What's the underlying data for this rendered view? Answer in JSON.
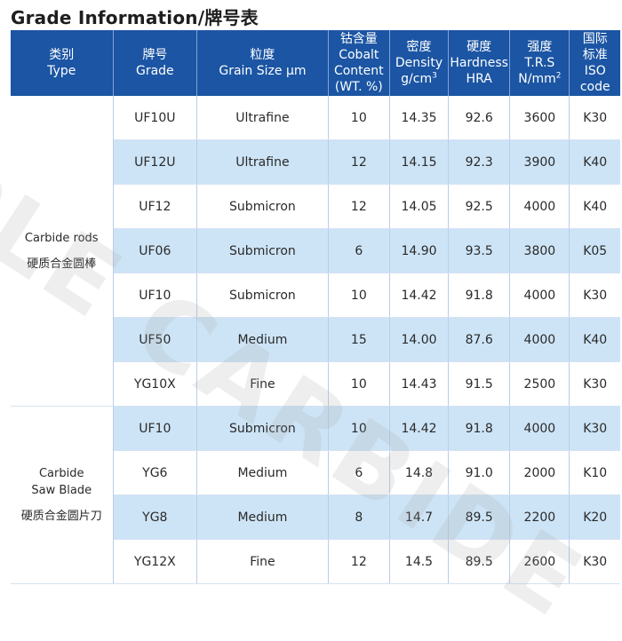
{
  "title": "Grade Information/牌号表",
  "watermark": "PLE CARBIDE",
  "header": {
    "type": [
      "类别",
      "Type"
    ],
    "grade": [
      "牌号",
      "Grade"
    ],
    "grain": [
      "粒度",
      "Grain Size μm"
    ],
    "cobalt": [
      "钴含量",
      "Cobalt",
      "Content",
      "(WT. %)"
    ],
    "density": [
      "密度",
      "Density",
      "g/cm",
      "3"
    ],
    "hardness": [
      "硬度",
      "Hardness",
      "HRA"
    ],
    "strength": [
      "强度",
      "T.R.S",
      "N/mm",
      "2"
    ],
    "iso": [
      "国际",
      "标准",
      "ISO",
      "code"
    ]
  },
  "groups": [
    {
      "type_en": "Carbide rods",
      "type_cn": "硬质合金圆棒",
      "rows": [
        {
          "grade": "UF10U",
          "grain": "Ultrafine",
          "cobalt": "10",
          "density": "14.35",
          "hardness": "92.6",
          "trs": "3600",
          "iso": "K30"
        },
        {
          "grade": "UF12U",
          "grain": "Ultrafine",
          "cobalt": "12",
          "density": "14.15",
          "hardness": "92.3",
          "trs": "3900",
          "iso": "K40"
        },
        {
          "grade": "UF12",
          "grain": "Submicron",
          "cobalt": "12",
          "density": "14.05",
          "hardness": "92.5",
          "trs": "4000",
          "iso": "K40"
        },
        {
          "grade": "UF06",
          "grain": "Submicron",
          "cobalt": "6",
          "density": "14.90",
          "hardness": "93.5",
          "trs": "3800",
          "iso": "K05"
        },
        {
          "grade": "UF10",
          "grain": "Submicron",
          "cobalt": "10",
          "density": "14.42",
          "hardness": "91.8",
          "trs": "4000",
          "iso": "K30"
        },
        {
          "grade": "UF50",
          "grain": "Medium",
          "cobalt": "15",
          "density": "14.00",
          "hardness": "87.6",
          "trs": "4000",
          "iso": "K40"
        },
        {
          "grade": "YG10X",
          "grain": "Fine",
          "cobalt": "10",
          "density": "14.43",
          "hardness": "91.5",
          "trs": "2500",
          "iso": "K30"
        }
      ]
    },
    {
      "type_en_1": "Carbide",
      "type_en_2": "Saw Blade",
      "type_cn": "硬质合金圆片刀",
      "rows": [
        {
          "grade": "UF10",
          "grain": "Submicron",
          "cobalt": "10",
          "density": "14.42",
          "hardness": "91.8",
          "trs": "4000",
          "iso": "K30"
        },
        {
          "grade": "YG6",
          "grain": "Medium",
          "cobalt": "6",
          "density": "14.8",
          "hardness": "91.0",
          "trs": "2000",
          "iso": "K10"
        },
        {
          "grade": "YG8",
          "grain": "Medium",
          "cobalt": "8",
          "density": "14.7",
          "hardness": "89.5",
          "trs": "2200",
          "iso": "K20"
        },
        {
          "grade": "YG12X",
          "grain": "Fine",
          "cobalt": "12",
          "density": "14.5",
          "hardness": "89.5",
          "trs": "2600",
          "iso": "K30"
        }
      ]
    }
  ],
  "colors": {
    "header_bg": "#1b55a3",
    "alt_row_bg": "#cde4f6",
    "header_text": "#ffffff"
  }
}
